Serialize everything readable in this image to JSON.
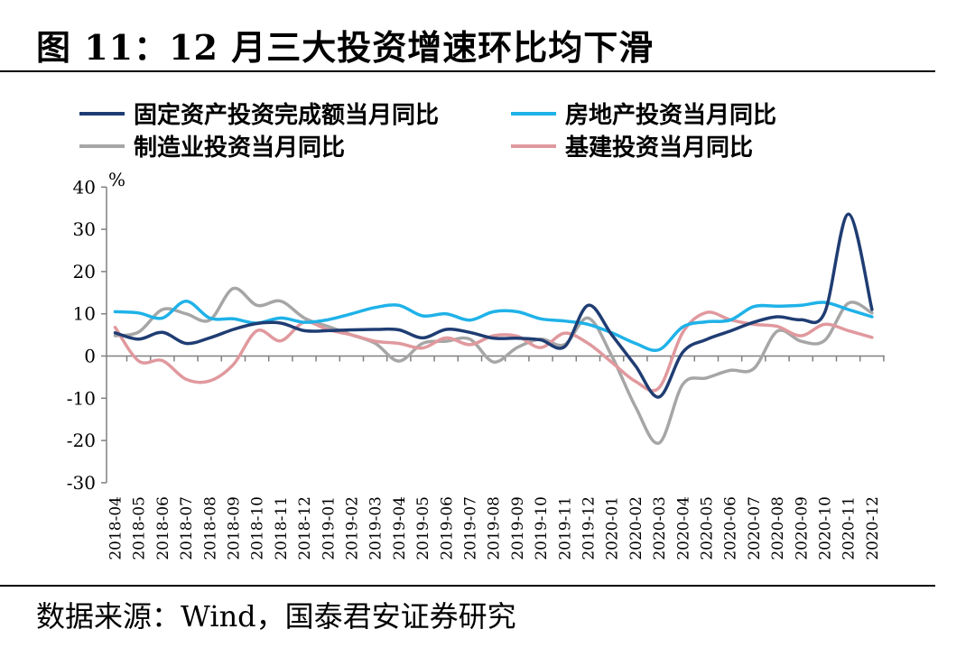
{
  "title": "图 11：12 月三大投资增速环比均下滑",
  "source": "数据来源：Wind，国泰君安证券研究",
  "chart_data": {
    "type": "line",
    "unit_label": "%",
    "ylim": [
      -30,
      40
    ],
    "yticks": [
      40,
      30,
      20,
      10,
      0,
      -10,
      -20,
      -30
    ],
    "grid": false,
    "legend_position": "top",
    "categories": [
      "2018-04",
      "2018-05",
      "2018-06",
      "2018-07",
      "2018-08",
      "2018-09",
      "2018-10",
      "2018-11",
      "2018-12",
      "2019-01",
      "2019-02",
      "2019-03",
      "2019-04",
      "2019-05",
      "2019-06",
      "2019-07",
      "2019-08",
      "2019-09",
      "2019-10",
      "2019-11",
      "2019-12",
      "2020-01",
      "2020-02",
      "2020-03",
      "2020-04",
      "2020-05",
      "2020-06",
      "2020-07",
      "2020-08",
      "2020-09",
      "2020-10",
      "2020-11",
      "2020-12"
    ],
    "series": [
      {
        "name": "固定资产投资完成额当月同比",
        "color": "#1f3d73",
        "values": [
          5.5,
          4.0,
          5.6,
          3.0,
          4.3,
          6.3,
          7.7,
          7.8,
          6.0,
          6.0,
          6.2,
          6.3,
          6.2,
          4.3,
          6.3,
          5.6,
          4.2,
          4.2,
          3.8,
          2.2,
          12.0,
          5.0,
          -2.3,
          -9.7,
          0.9,
          3.9,
          5.9,
          8.0,
          9.3,
          8.6,
          10.3,
          33.6,
          11.0
        ]
      },
      {
        "name": "房地产投资当月同比",
        "color": "#1fb2e8",
        "values": [
          10.5,
          10.2,
          9.0,
          13.0,
          9.0,
          8.8,
          7.8,
          9.0,
          8.0,
          8.6,
          10.0,
          11.5,
          12.0,
          9.5,
          10.0,
          8.5,
          10.5,
          10.5,
          8.8,
          8.3,
          7.5,
          5.5,
          3.0,
          1.5,
          6.9,
          8.1,
          8.5,
          11.7,
          11.8,
          12.0,
          12.7,
          11.0,
          9.3
        ]
      },
      {
        "name": "制造业投资当月同比",
        "color": "#a6a6a6",
        "values": [
          4.8,
          5.7,
          11.0,
          10.0,
          8.5,
          16.0,
          12.0,
          13.0,
          9.0,
          7.0,
          5.0,
          3.0,
          -1.2,
          3.0,
          3.5,
          4.0,
          -1.4,
          2.0,
          4.0,
          2.7,
          9.0,
          0.0,
          -12.0,
          -20.6,
          -6.7,
          -5.2,
          -3.4,
          -3.0,
          5.9,
          3.5,
          3.7,
          12.5,
          10.2
        ]
      },
      {
        "name": "基建投资当月同比",
        "color": "#e0999e",
        "values": [
          6.8,
          -1.2,
          -1.1,
          -5.5,
          -5.9,
          -2.0,
          6.0,
          3.6,
          8.0,
          6.2,
          5.0,
          3.5,
          3.0,
          1.9,
          4.3,
          2.7,
          4.8,
          4.7,
          2.0,
          5.4,
          3.0,
          -1.5,
          -6.0,
          -7.5,
          5.6,
          10.3,
          8.6,
          7.5,
          7.0,
          4.8,
          7.5,
          6.0,
          4.4
        ]
      }
    ]
  }
}
